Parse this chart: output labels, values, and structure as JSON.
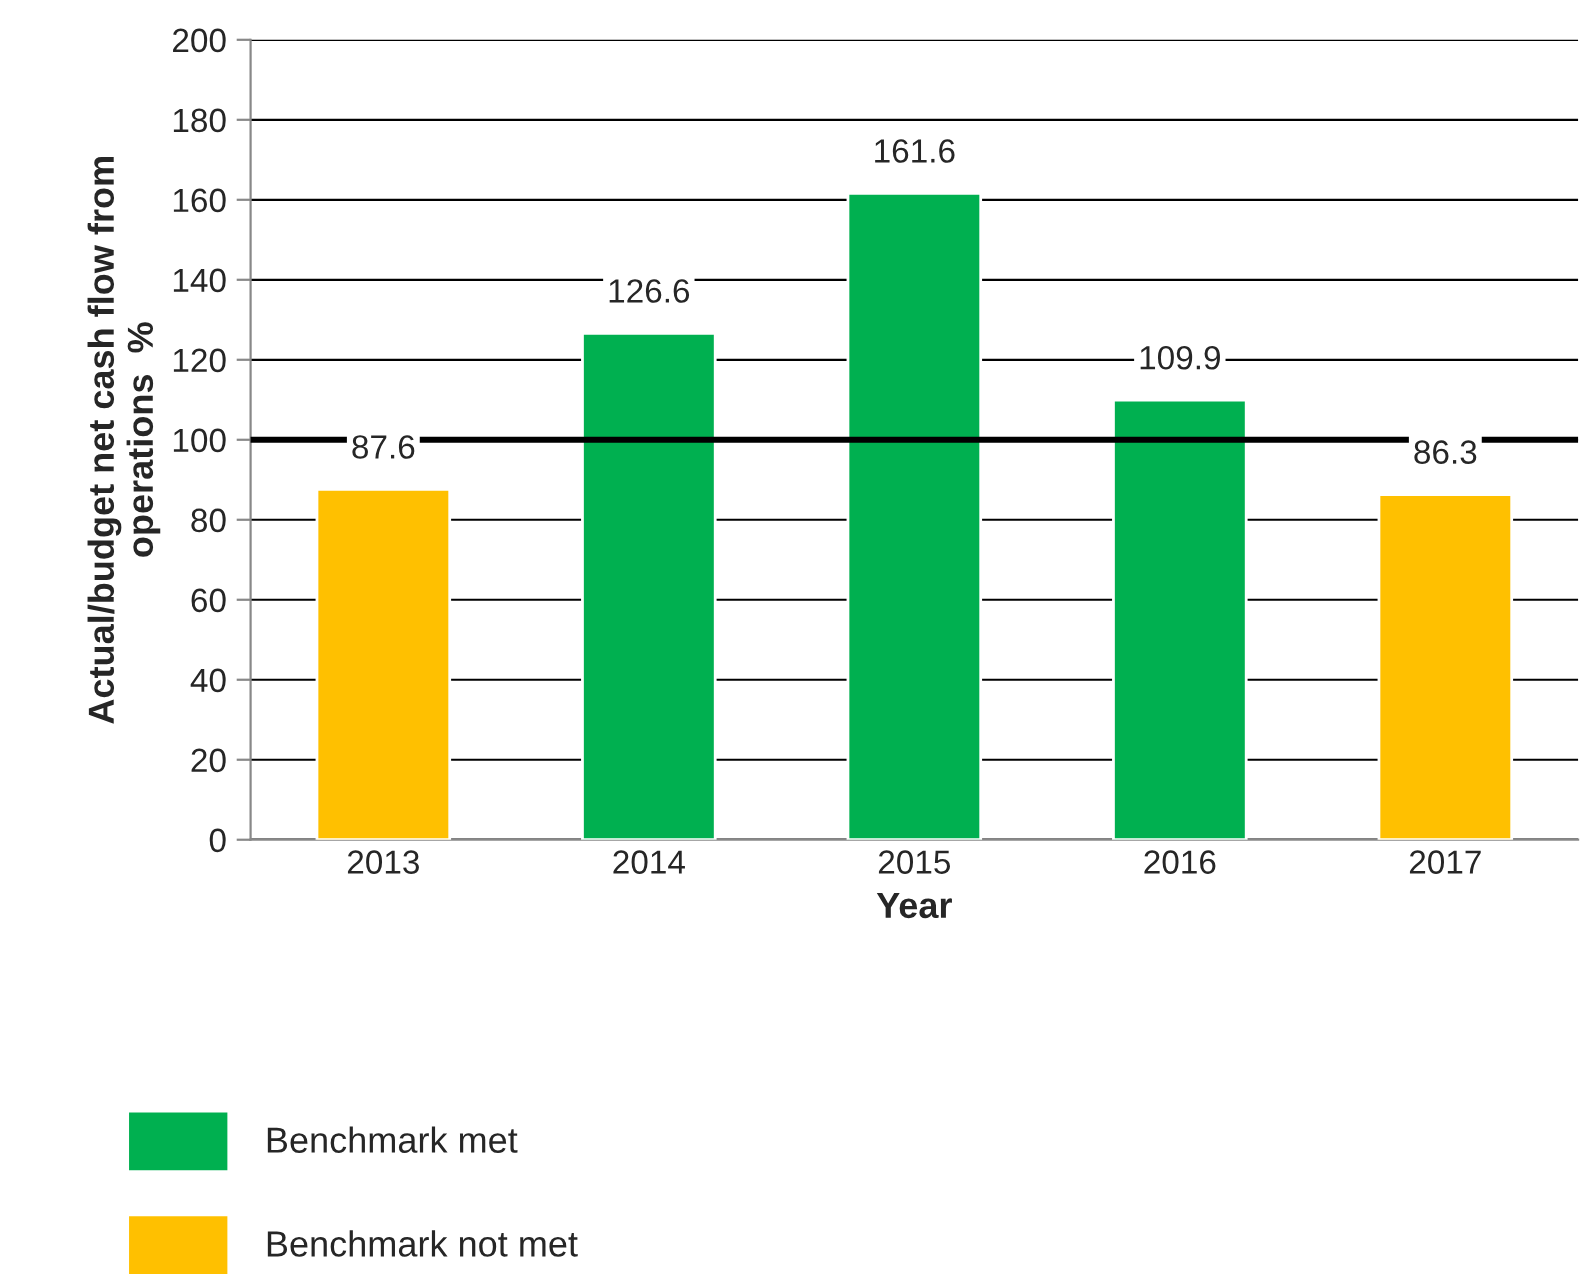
{
  "chart_data": {
    "type": "bar",
    "xlabel": "Year",
    "ylabel": "Actual/budget net cash flow from\noperations  %",
    "categories": [
      "2013",
      "2014",
      "2015",
      "2016",
      "2017"
    ],
    "stacked": true,
    "series": [
      {
        "name": "Benchmark met",
        "color": "#00b050",
        "values": [
          null,
          126.6,
          161.6,
          109.9,
          null
        ]
      },
      {
        "name": "Benchmark not met",
        "color": "#ffc000",
        "values": [
          87.6,
          null,
          null,
          null,
          86.3
        ]
      }
    ],
    "ylim": [
      0,
      200
    ],
    "yticks": [
      0,
      20,
      40,
      60,
      80,
      100,
      120,
      140,
      160,
      180,
      200
    ],
    "ref_lines": [
      {
        "axis": "y",
        "value": 100,
        "color": "#000000",
        "line_style": "solid"
      }
    ],
    "grid": "y",
    "data_labels": true,
    "legend": "bottom"
  }
}
